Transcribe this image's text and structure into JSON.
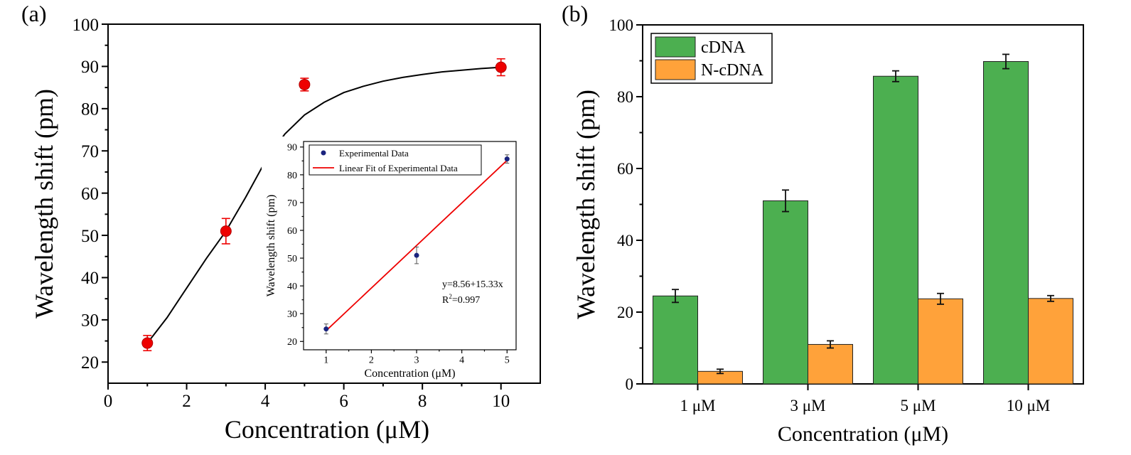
{
  "panels": {
    "a_label": "(a)",
    "b_label": "(b)"
  },
  "colors": {
    "red_marker": "#ee0000",
    "fit_curve": "#000000",
    "inset_marker": "#1a237e",
    "inset_fit": "#ee0000",
    "cdna": "#4caf50",
    "ncdna": "#ffa23a",
    "axis": "#000000"
  },
  "chart_data": [
    {
      "id": "a",
      "type": "scatter",
      "xlabel": "Concentration (μM)",
      "ylabel": "Wavelength shift (pm)",
      "xlim": [
        0,
        11
      ],
      "ylim": [
        15,
        100
      ],
      "xticks": [
        0,
        2,
        4,
        6,
        8,
        10
      ],
      "yticks": [
        20,
        30,
        40,
        50,
        60,
        70,
        80,
        90,
        100
      ],
      "grid": false,
      "points": [
        {
          "x": 1,
          "y": 24.5,
          "err": 1.8
        },
        {
          "x": 3,
          "y": 51,
          "err": 3.0
        },
        {
          "x": 5,
          "y": 85.7,
          "err": 1.5
        },
        {
          "x": 10,
          "y": 89.8,
          "err": 2.0
        }
      ],
      "fit_curve": [
        [
          1,
          24.5
        ],
        [
          1.5,
          30.5
        ],
        [
          2,
          37.5
        ],
        [
          2.5,
          44.5
        ],
        [
          3,
          51
        ],
        [
          3.5,
          59
        ],
        [
          4,
          67.5
        ],
        [
          4.5,
          74
        ],
        [
          5,
          78.5
        ],
        [
          5.5,
          81.5
        ],
        [
          6,
          83.8
        ],
        [
          6.5,
          85.3
        ],
        [
          7,
          86.5
        ],
        [
          7.5,
          87.4
        ],
        [
          8,
          88.1
        ],
        [
          8.5,
          88.7
        ],
        [
          9,
          89.1
        ],
        [
          9.5,
          89.5
        ],
        [
          10,
          89.8
        ]
      ]
    },
    {
      "id": "a-inset",
      "type": "scatter",
      "xlabel": "Concentration (μM)",
      "ylabel": "Wavelength shift (pm)",
      "xlim": [
        0.5,
        5.2
      ],
      "ylim": [
        17,
        92
      ],
      "xticks": [
        1,
        2,
        3,
        4,
        5
      ],
      "yticks": [
        20,
        30,
        40,
        50,
        60,
        70,
        80,
        90
      ],
      "grid": false,
      "legend": [
        "Experimental Data",
        "Linear Fit of Experimental Data"
      ],
      "legend_position": "top-left",
      "points": [
        {
          "x": 1,
          "y": 24.5,
          "err": 1.8
        },
        {
          "x": 3,
          "y": 51,
          "err": 3.0
        },
        {
          "x": 5,
          "y": 85.7,
          "err": 1.5
        }
      ],
      "fit_line": [
        [
          1,
          23.9
        ],
        [
          5,
          85.2
        ]
      ],
      "equation": "y=8.56+15.33x",
      "r2_label": "R",
      "r2_exp": "2",
      "r2_value": "=0.997"
    },
    {
      "id": "b",
      "type": "bar",
      "xlabel": "Concentration (μM)",
      "ylabel": "Wavelength shift (pm)",
      "ylim": [
        0,
        100
      ],
      "yticks": [
        0,
        20,
        40,
        60,
        80,
        100
      ],
      "grid": false,
      "legend_position": "top-left",
      "categories": [
        "1 μM",
        "3 μM",
        "5 μM",
        "10 μM"
      ],
      "series": [
        {
          "name": "cDNA",
          "values": [
            24.5,
            51,
            85.7,
            89.8
          ],
          "errors": [
            1.8,
            3.0,
            1.5,
            2.0
          ]
        },
        {
          "name": "N-cDNA",
          "values": [
            3.5,
            11,
            23.7,
            23.8
          ],
          "errors": [
            0.6,
            1.0,
            1.5,
            0.8
          ]
        }
      ]
    }
  ]
}
